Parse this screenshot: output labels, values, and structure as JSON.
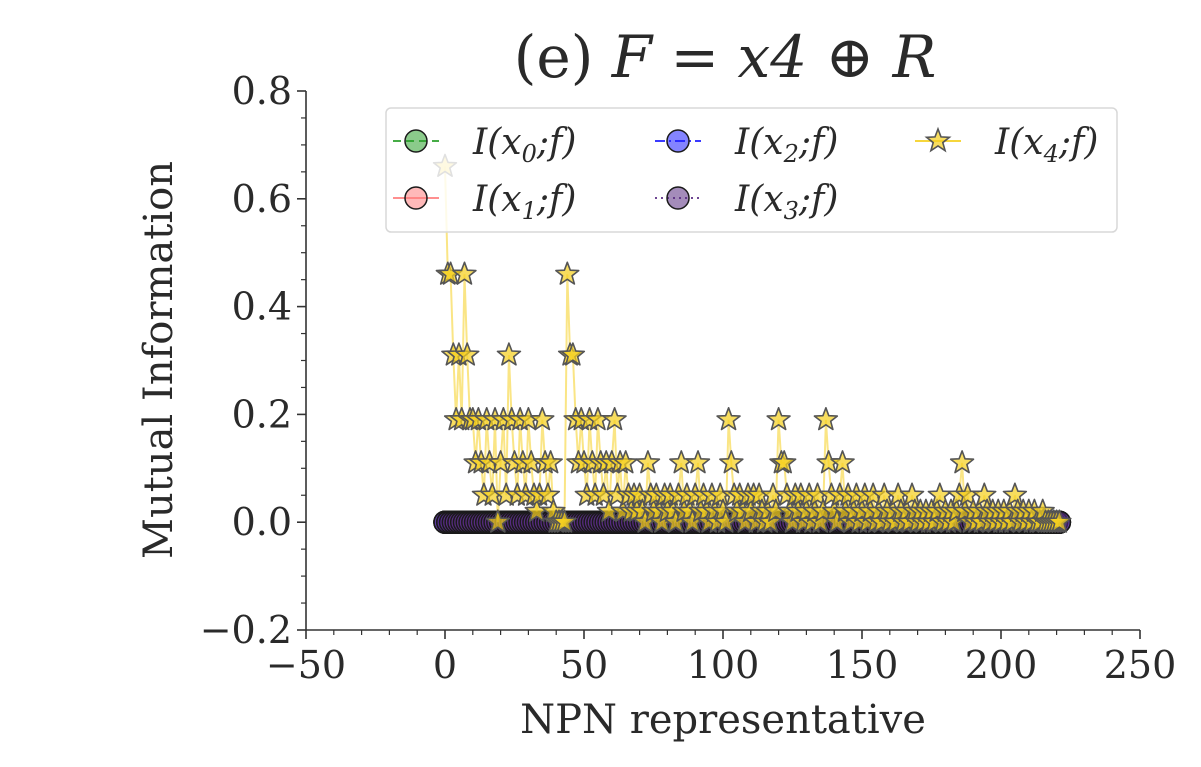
{
  "chart_data": {
    "type": "scatter",
    "title": {
      "prefix": "(e) ",
      "math": "F = x4 ⊕ R"
    },
    "xlabel": "NPN representative",
    "ylabel": "Mutual Information",
    "xlim": [
      -50,
      250
    ],
    "ylim": [
      -0.2,
      0.8
    ],
    "xticks": [
      -50,
      0,
      50,
      100,
      150,
      200,
      250
    ],
    "yticks": [
      -0.2,
      0.0,
      0.2,
      0.4,
      0.6,
      0.8
    ],
    "xtick_labels": [
      "−50",
      "0",
      "50",
      "100",
      "150",
      "200",
      "250"
    ],
    "ytick_labels": [
      "−0.2",
      "0.0",
      "0.2",
      "0.4",
      "0.6",
      "0.8"
    ],
    "grid": false,
    "legend_position": "top-right",
    "legend_columns": 3,
    "series": [
      {
        "name": "I(x0;f)",
        "legend": {
          "base": "I(x",
          "sub": "0",
          "tail": ";f)"
        },
        "color": "#2ca02c",
        "marker": "circle",
        "linestyle": "dashed",
        "x_range": [
          0,
          221
        ],
        "y_constant": 0.0
      },
      {
        "name": "I(x1;f)",
        "legend": {
          "base": "I(x",
          "sub": "1",
          "tail": ";f)"
        },
        "color": "#ff7f7f",
        "marker": "circle",
        "linestyle": "solid",
        "x_range": [
          0,
          221
        ],
        "y_constant": 0.0
      },
      {
        "name": "I(x2;f)",
        "legend": {
          "base": "I(x",
          "sub": "2",
          "tail": ";f)"
        },
        "color": "#1f1fff",
        "marker": "circle",
        "linestyle": "dashdot",
        "x_range": [
          0,
          221
        ],
        "y_constant": 0.0
      },
      {
        "name": "I(x3;f)",
        "legend": {
          "base": "I(x",
          "sub": "3",
          "tail": ";f)"
        },
        "color": "#5a2d82",
        "marker": "circle",
        "linestyle": "dotted",
        "x_range": [
          0,
          221
        ],
        "y_constant": 0.0
      },
      {
        "name": "I(x4;f)",
        "legend": {
          "base": "I(x",
          "sub": "4",
          "tail": ";f)"
        },
        "color": "#f5d020",
        "marker": "star",
        "linestyle": "solid",
        "points": [
          [
            0,
            0.66
          ],
          [
            1,
            0.46
          ],
          [
            2,
            0.46
          ],
          [
            3,
            0.31
          ],
          [
            4,
            0.19
          ],
          [
            5,
            0.31
          ],
          [
            6,
            0.19
          ],
          [
            7,
            0.46
          ],
          [
            8,
            0.31
          ],
          [
            9,
            0.19
          ],
          [
            10,
            0.19
          ],
          [
            11,
            0.11
          ],
          [
            12,
            0.19
          ],
          [
            13,
            0.11
          ],
          [
            14,
            0.05
          ],
          [
            15,
            0.19
          ],
          [
            16,
            0.11
          ],
          [
            17,
            0.05
          ],
          [
            18,
            0.19
          ],
          [
            19,
            0.0
          ],
          [
            20,
            0.11
          ],
          [
            21,
            0.19
          ],
          [
            22,
            0.05
          ],
          [
            23,
            0.31
          ],
          [
            24,
            0.19
          ],
          [
            25,
            0.11
          ],
          [
            26,
            0.05
          ],
          [
            27,
            0.19
          ],
          [
            28,
            0.11
          ],
          [
            29,
            0.05
          ],
          [
            30,
            0.19
          ],
          [
            31,
            0.11
          ],
          [
            32,
            0.05
          ],
          [
            33,
            0.02
          ],
          [
            34,
            0.05
          ],
          [
            35,
            0.19
          ],
          [
            36,
            0.11
          ],
          [
            37,
            0.05
          ],
          [
            38,
            0.11
          ],
          [
            39,
            0.02
          ],
          [
            40,
            0.0
          ],
          [
            41,
            0.0
          ],
          [
            42,
            0.0
          ],
          [
            43,
            0.0
          ],
          [
            44,
            0.46
          ],
          [
            45,
            0.31
          ],
          [
            46,
            0.31
          ],
          [
            47,
            0.19
          ],
          [
            48,
            0.11
          ],
          [
            49,
            0.19
          ],
          [
            50,
            0.11
          ],
          [
            51,
            0.05
          ],
          [
            52,
            0.19
          ],
          [
            53,
            0.11
          ],
          [
            54,
            0.05
          ],
          [
            55,
            0.19
          ],
          [
            56,
            0.11
          ],
          [
            57,
            0.05
          ],
          [
            58,
            0.11
          ],
          [
            59,
            0.02
          ],
          [
            60,
            0.11
          ],
          [
            61,
            0.19
          ],
          [
            62,
            0.05
          ],
          [
            63,
            0.11
          ],
          [
            64,
            0.02
          ],
          [
            65,
            0.11
          ],
          [
            66,
            0.05
          ],
          [
            67,
            0.02
          ],
          [
            68,
            0.05
          ],
          [
            69,
            0.02
          ],
          [
            70,
            0.05
          ],
          [
            71,
            0.02
          ],
          [
            72,
            0.0
          ],
          [
            73,
            0.11
          ],
          [
            74,
            0.05
          ],
          [
            75,
            0.02
          ],
          [
            76,
            0.05
          ],
          [
            77,
            0.02
          ],
          [
            78,
            0.0
          ],
          [
            79,
            0.05
          ],
          [
            80,
            0.02
          ],
          [
            81,
            0.05
          ],
          [
            82,
            0.02
          ],
          [
            83,
            0.0
          ],
          [
            84,
            0.05
          ],
          [
            85,
            0.11
          ],
          [
            86,
            0.02
          ],
          [
            87,
            0.05
          ],
          [
            88,
            0.02
          ],
          [
            89,
            0.0
          ],
          [
            90,
            0.05
          ],
          [
            91,
            0.11
          ],
          [
            92,
            0.02
          ],
          [
            93,
            0.05
          ],
          [
            94,
            0.02
          ],
          [
            95,
            0.0
          ],
          [
            96,
            0.05
          ],
          [
            97,
            0.02
          ],
          [
            98,
            0.0
          ],
          [
            99,
            0.05
          ],
          [
            100,
            0.02
          ],
          [
            101,
            0.0
          ],
          [
            102,
            0.19
          ],
          [
            103,
            0.11
          ],
          [
            104,
            0.05
          ],
          [
            105,
            0.02
          ],
          [
            106,
            0.05
          ],
          [
            107,
            0.02
          ],
          [
            108,
            0.0
          ],
          [
            109,
            0.05
          ],
          [
            110,
            0.02
          ],
          [
            111,
            0.05
          ],
          [
            112,
            0.0
          ],
          [
            113,
            0.05
          ],
          [
            114,
            0.02
          ],
          [
            115,
            0.0
          ],
          [
            116,
            0.02
          ],
          [
            117,
            0.0
          ],
          [
            118,
            0.05
          ],
          [
            119,
            0.02
          ],
          [
            120,
            0.19
          ],
          [
            121,
            0.11
          ],
          [
            122,
            0.11
          ],
          [
            123,
            0.05
          ],
          [
            124,
            0.02
          ],
          [
            125,
            0.0
          ],
          [
            126,
            0.05
          ],
          [
            127,
            0.02
          ],
          [
            128,
            0.05
          ],
          [
            129,
            0.0
          ],
          [
            130,
            0.02
          ],
          [
            131,
            0.05
          ],
          [
            132,
            0.0
          ],
          [
            133,
            0.02
          ],
          [
            134,
            0.05
          ],
          [
            135,
            0.0
          ],
          [
            136,
            0.02
          ],
          [
            137,
            0.19
          ],
          [
            138,
            0.11
          ],
          [
            139,
            0.05
          ],
          [
            140,
            0.02
          ],
          [
            141,
            0.0
          ],
          [
            142,
            0.05
          ],
          [
            143,
            0.11
          ],
          [
            144,
            0.02
          ],
          [
            145,
            0.05
          ],
          [
            146,
            0.0
          ],
          [
            147,
            0.02
          ],
          [
            148,
            0.05
          ],
          [
            149,
            0.0
          ],
          [
            150,
            0.02
          ],
          [
            151,
            0.05
          ],
          [
            152,
            0.0
          ],
          [
            153,
            0.02
          ],
          [
            154,
            0.05
          ],
          [
            155,
            0.0
          ],
          [
            156,
            0.02
          ],
          [
            157,
            0.0
          ],
          [
            158,
            0.05
          ],
          [
            159,
            0.02
          ],
          [
            160,
            0.0
          ],
          [
            161,
            0.02
          ],
          [
            162,
            0.0
          ],
          [
            163,
            0.05
          ],
          [
            164,
            0.02
          ],
          [
            165,
            0.0
          ],
          [
            166,
            0.02
          ],
          [
            167,
            0.0
          ],
          [
            168,
            0.05
          ],
          [
            169,
            0.02
          ],
          [
            170,
            0.0
          ],
          [
            171,
            0.02
          ],
          [
            172,
            0.0
          ],
          [
            173,
            0.02
          ],
          [
            174,
            0.0
          ],
          [
            175,
            0.02
          ],
          [
            176,
            0.0
          ],
          [
            177,
            0.02
          ],
          [
            178,
            0.05
          ],
          [
            179,
            0.0
          ],
          [
            180,
            0.02
          ],
          [
            181,
            0.0
          ],
          [
            182,
            0.02
          ],
          [
            183,
            0.0
          ],
          [
            184,
            0.02
          ],
          [
            185,
            0.05
          ],
          [
            186,
            0.11
          ],
          [
            187,
            0.02
          ],
          [
            188,
            0.05
          ],
          [
            189,
            0.0
          ],
          [
            190,
            0.02
          ],
          [
            191,
            0.0
          ],
          [
            192,
            0.02
          ],
          [
            193,
            0.0
          ],
          [
            194,
            0.05
          ],
          [
            195,
            0.02
          ],
          [
            196,
            0.0
          ],
          [
            197,
            0.02
          ],
          [
            198,
            0.0
          ],
          [
            199,
            0.02
          ],
          [
            200,
            0.0
          ],
          [
            201,
            0.02
          ],
          [
            202,
            0.0
          ],
          [
            203,
            0.02
          ],
          [
            204,
            0.0
          ],
          [
            205,
            0.05
          ],
          [
            206,
            0.02
          ],
          [
            207,
            0.0
          ],
          [
            208,
            0.02
          ],
          [
            209,
            0.0
          ],
          [
            210,
            0.02
          ],
          [
            211,
            0.0
          ],
          [
            212,
            0.02
          ],
          [
            213,
            0.0
          ],
          [
            214,
            0.0
          ],
          [
            215,
            0.02
          ],
          [
            216,
            0.0
          ],
          [
            217,
            0.0
          ],
          [
            218,
            0.0
          ],
          [
            219,
            0.0
          ],
          [
            220,
            0.0
          ],
          [
            221,
            0.0
          ]
        ]
      }
    ]
  }
}
